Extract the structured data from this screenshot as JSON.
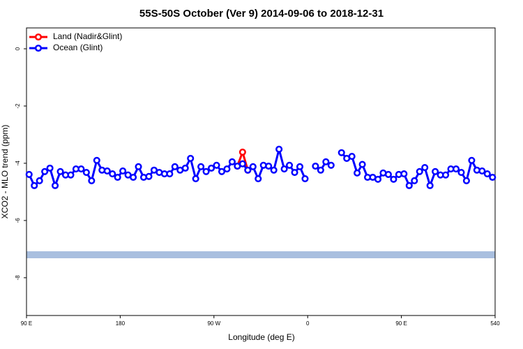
{
  "chart_data": {
    "type": "line",
    "title": "55S-50S October (Ver 9)   2014-09-06 to 2018-12-31",
    "xlabel": "Longitude (deg E)",
    "ylabel": "XCO2 - MLO trend (ppm)",
    "xlim": [
      90,
      540
    ],
    "ylim": [
      -9.32,
      0.73
    ],
    "xticks": [
      {
        "value": 90,
        "label": "90 E"
      },
      180,
      {
        "value": 270,
        "label": "90 W"
      },
      {
        "value": 360,
        "label": "0"
      },
      {
        "value": 450,
        "label": "90 E"
      },
      540
    ],
    "yticks": [
      0,
      -2,
      -4,
      -6,
      -8
    ],
    "legend": "top-left",
    "x": [
      92.5,
      97.5,
      102.5,
      107.5,
      112.5,
      117.5,
      122.5,
      127.5,
      132.5,
      137.5,
      142.5,
      147.5,
      152.5,
      157.5,
      162.5,
      167.5,
      172.5,
      177.5,
      182.5,
      187.5,
      192.5,
      197.5,
      202.5,
      207.5,
      212.5,
      217.5,
      222.5,
      227.5,
      232.5,
      237.5,
      242.5,
      247.5,
      252.5,
      257.5,
      262.5,
      267.5,
      272.5,
      277.5,
      282.5,
      287.5,
      292.5,
      297.5,
      302.5,
      307.5,
      312.5,
      317.5,
      322.5,
      327.5,
      332.5,
      337.5,
      342.5,
      347.5,
      352.5,
      357.5,
      362.5,
      367.5,
      372.5,
      377.5,
      382.5,
      387.5,
      392.5,
      397.5,
      402.5,
      407.5,
      412.5,
      417.5,
      422.5,
      427.5,
      432.5,
      437.5,
      442.5,
      447.5,
      452.5,
      457.5,
      462.5,
      467.5,
      472.5,
      477.5,
      482.5,
      487.5,
      492.5,
      497.5,
      502.5,
      507.5,
      512.5,
      517.5,
      522.5,
      527.5,
      532.5,
      537.5
    ],
    "series": [
      {
        "name": "Land (Nadir&Glint)",
        "color": "#ff0000",
        "x": [
          292.5,
          297.5,
          302.5
        ],
        "values": [
          -4.1,
          -3.61,
          -4.24
        ]
      },
      {
        "name": "Ocean (Glint)",
        "color": "#0000ff",
        "values": [
          -4.39,
          -4.78,
          -4.61,
          -4.29,
          -4.17,
          -4.78,
          -4.29,
          -4.41,
          -4.41,
          -4.2,
          -4.2,
          -4.32,
          -4.61,
          -3.9,
          -4.24,
          -4.27,
          -4.37,
          -4.49,
          -4.27,
          -4.41,
          -4.49,
          -4.12,
          -4.49,
          -4.46,
          -4.24,
          -4.32,
          -4.37,
          -4.37,
          -4.12,
          -4.24,
          -4.17,
          -3.83,
          -4.54,
          -4.12,
          -4.29,
          -4.17,
          -4.07,
          -4.29,
          -4.2,
          -3.95,
          -4.1,
          -4.02,
          -4.24,
          -4.12,
          -4.54,
          -4.07,
          -4.1,
          -4.24,
          -3.51,
          -4.2,
          -4.07,
          -4.32,
          -4.12,
          -4.54,
          null,
          -4.1,
          -4.24,
          -3.95,
          -4.07,
          null,
          -3.63,
          -3.83,
          -3.76,
          -4.34,
          -4.04,
          -4.49,
          -4.49,
          -4.56,
          -4.34,
          -4.39,
          -4.56,
          -4.39,
          -4.37,
          -4.78,
          -4.61,
          -4.29,
          -4.15,
          -4.78,
          -4.29,
          -4.41,
          -4.41,
          -4.2,
          -4.2,
          -4.32,
          -4.61,
          -3.9,
          -4.24,
          -4.27,
          -4.37,
          -4.49
        ]
      }
    ]
  }
}
